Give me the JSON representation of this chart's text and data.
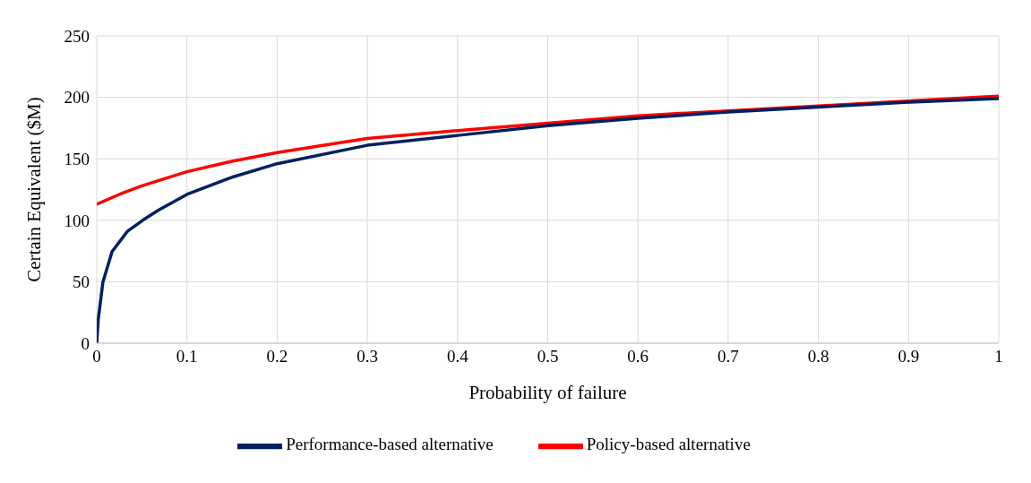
{
  "chart_data": {
    "type": "line",
    "xlabel": "Probability of failure",
    "ylabel": "Certain Equivalent ($M)",
    "xlim": [
      0,
      1
    ],
    "xticks": [
      0,
      0.1,
      0.2,
      0.3,
      0.4,
      0.5,
      0.6,
      0.7,
      0.8,
      0.9,
      1
    ],
    "ylim": [
      0,
      250
    ],
    "yticks": [
      0,
      50,
      100,
      150,
      200,
      250
    ],
    "grid": true,
    "legend": "bottom",
    "marker": "none",
    "line_style": "solid",
    "series": [
      {
        "name": "Policy-based alternative",
        "color": "#ff0000",
        "x": [
          0,
          0.025,
          0.05,
          0.1,
          0.15,
          0.2,
          0.3,
          0.4,
          0.5,
          0.6,
          0.7,
          0.8,
          0.9,
          1
        ],
        "values": [
          113,
          121,
          128,
          139.5,
          148,
          155,
          166.5,
          173,
          179,
          185,
          189,
          193,
          197,
          201
        ]
      },
      {
        "name": "Performance-based alternative",
        "color": "#002060",
        "x": [
          0,
          0.0017,
          0.0068,
          0.017,
          0.034,
          0.051,
          0.068,
          0.1,
          0.15,
          0.2,
          0.3,
          0.4,
          0.5,
          0.6,
          0.7,
          0.8,
          0.9,
          1
        ],
        "values": [
          0,
          19.5,
          49.5,
          74.5,
          91,
          100,
          108,
          121,
          135,
          146,
          161,
          169,
          177,
          183,
          188,
          192,
          196,
          199
        ]
      }
    ]
  }
}
